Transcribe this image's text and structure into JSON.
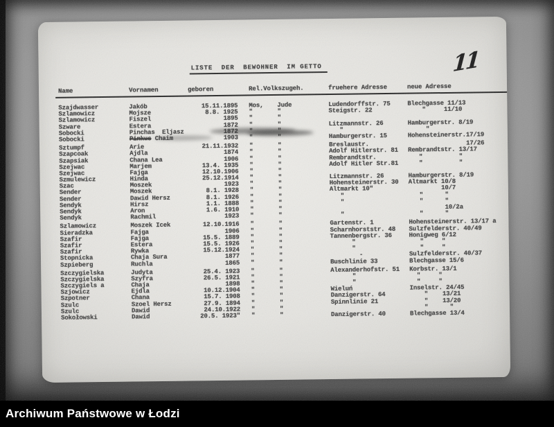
{
  "annotations": {
    "page_number_handwritten": "11"
  },
  "footer": {
    "label": "Archiwum Państwowe w Łodzi"
  },
  "colors": {
    "paper": "#e6e5e1",
    "backing": "#8f8f8f",
    "ink": "#3d3d3d",
    "bar": "#000000",
    "bar_text": "#ffffff"
  },
  "document": {
    "title": "LISTE  DER  BEWOHNER  IM GETTO",
    "headers": {
      "name": "Name",
      "vornamen": "Vornamen",
      "geboren": "geboren",
      "rel": "Rel.Volkszugeh.",
      "addr_old": "fruehere Adresse",
      "addr_new": "neue Adresse"
    },
    "rows": [
      {
        "name": "Szajdwasser",
        "vorname": "Jakób",
        "geboren": "15.11.1895",
        "rel1": "Mos,",
        "rel2": "Jude",
        "addr_old": "Ludendorffstr. 75",
        "addr_new": "Blechgasse 11/13"
      },
      {
        "name": "Szlamowicz",
        "vorname": "Mojsze",
        "geboren": "8.8. 1925",
        "rel1": "\"",
        "rel2": "\"",
        "addr_old": "Steigstr. 22",
        "addr_new": "    \"     11/10"
      },
      {
        "name": "Szlamowicz",
        "vorname": "Fiszel",
        "geboren": "1895",
        "rel1": "\"",
        "rel2": "\"",
        "addr_old": "",
        "addr_new": ""
      },
      {
        "name": "Szware",
        "vorname": "Estera",
        "geboren": "1872",
        "rel1": "\"",
        "rel2": "\"",
        "addr_old": "Litzmannstr. 26",
        "addr_new": "Hamburgerstr. 8/19"
      },
      {
        "name": "Sobocki",
        "vorname": "Pinchas  Eljasz",
        "geboren": "1872",
        "rel1": "\"",
        "rel2": "\"",
        "addr_old": "   \"",
        "addr_new": "     \""
      },
      {
        "name": "Sobocki",
        "vorname": "Chaim",
        "vorname_struck": "Pinkus",
        "geboren": "1903",
        "rel1": "\"",
        "rel2": "\"",
        "addr_old": "Hamburgerstr. 15",
        "addr_new": "Hohensteinerstr.17/19"
      },
      {
        "name": "Sztumpf",
        "vorname": "Arie",
        "geboren": "21.11.1932",
        "rel1": "\"",
        "rel2": "\"",
        "addr_old": "Breslaustr.",
        "addr_new": "                17/26",
        "gap": true
      },
      {
        "name": "Szapcoak",
        "vorname": "Ajdla",
        "geboren": "1874",
        "rel1": "\"",
        "rel2": "\"",
        "addr_old": "Adolf Hitlerstr. 81",
        "addr_new": "Rembrandtstr. 13/17"
      },
      {
        "name": "Szapsiak",
        "vorname": "Chana Lea",
        "geboren": "1906",
        "rel1": "\"",
        "rel2": "\"",
        "addr_old": "Rembrandtstr.",
        "addr_new": "   \"          \""
      },
      {
        "name": "Szejwac",
        "vorname": "Marjem",
        "geboren": "13.4. 1935",
        "rel1": "\"",
        "rel2": "\"",
        "addr_old": "Adolf Hitler Str.81",
        "addr_new": "   \"          \""
      },
      {
        "name": "Szejwac",
        "vorname": "Fajga",
        "geboren": "12.10.1906",
        "rel1": "\"",
        "rel2": "\"",
        "addr_old": "",
        "addr_new": ""
      },
      {
        "name": "Szmulewicz",
        "vorname": "Hinda",
        "geboren": "25.12.1914",
        "rel1": "\"",
        "rel2": "\"",
        "addr_old": "Litzmannstr. 26",
        "addr_new": "Hamburgerstr. 8/19"
      },
      {
        "name": "Szac",
        "vorname": "Moszek",
        "geboren": "1923",
        "rel1": "\"",
        "rel2": "\"",
        "addr_old": "Hohensteinerstr. 30",
        "addr_new": "Altmarkt 10/8"
      },
      {
        "name": "Sender",
        "vorname": "Moszek",
        "geboren": "8.1. 1928",
        "rel1": "\"",
        "rel2": "\"",
        "addr_old": "Altmarkt 10\"",
        "addr_new": "         10/7"
      },
      {
        "name": "Sender",
        "vorname": "Dawid Hersz",
        "geboren": "8.1. 1926",
        "rel1": "\"",
        "rel2": "\"",
        "addr_old": "   \"",
        "addr_new": "   \"      \""
      },
      {
        "name": "Sendyk",
        "vorname": "Hirsz",
        "geboren": "1.1. 1888",
        "rel1": "\"",
        "rel2": "\"",
        "addr_old": "   \"",
        "addr_new": "   \"      \""
      },
      {
        "name": "Sendyk",
        "vorname": "Aron",
        "geboren": "1.6. 1910",
        "rel1": "\"",
        "rel2": "\"",
        "addr_old": "",
        "addr_new": "          10/2a"
      },
      {
        "name": "Sendyk",
        "vorname": "Rachmil",
        "geboren": "1923",
        "rel1": "\"",
        "rel2": "\"",
        "addr_old": "   \"",
        "addr_new": "   \"      \""
      },
      {
        "name": "Szlamowicz",
        "vorname": "Moszek Icek",
        "geboren": "12.10.1916",
        "rel1": "\"",
        "rel2": "\"",
        "addr_old": "Gartenstr. 1",
        "addr_new": "Hohensteinerstr. 13/17 a",
        "gap": true
      },
      {
        "name": "Sieradzka",
        "vorname": "Fajga",
        "geboren": "1906",
        "rel1": "\"",
        "rel2": "\"",
        "addr_old": "Scharnhorststr. 48",
        "addr_new": "Sulzfelderstr. 40/49"
      },
      {
        "name": "Szafir",
        "vorname": "Fajga",
        "geboren": "15.5. 1889",
        "rel1": "\"",
        "rel2": "\"",
        "addr_old": "Tannenbergstr. 36",
        "addr_new": "Honigweg 6/12"
      },
      {
        "name": "Szafir",
        "vorname": "Estera",
        "geboren": "15.5. 1926",
        "rel1": "\"",
        "rel2": "\"",
        "addr_old": "      \"",
        "addr_new": "   \"     \""
      },
      {
        "name": "Szafir",
        "vorname": "Rywka",
        "geboren": "15.12.1924",
        "rel1": "\"",
        "rel2": "\"",
        "addr_old": "      \"",
        "addr_new": "   \"     \""
      },
      {
        "name": "Stopnicka",
        "vorname": "Chaja Sura",
        "geboren": "1877",
        "rel1": "\"",
        "rel2": "\"",
        "addr_old": "        -",
        "addr_new": "Sulzfelderstr. 40/37"
      },
      {
        "name": "Szpieberg",
        "vorname": "Ruchla",
        "geboren": "1865",
        "rel1": "\"",
        "rel2": "\"",
        "addr_old": "Buschlinie 33",
        "addr_new": "Blechgasse 15/6"
      },
      {
        "name": "Szczygielska",
        "vorname": "Judyta",
        "geboren": "25.4. 1923",
        "rel1": "\"",
        "rel2": "\"",
        "addr_old": "Alexanderhofstr. 51",
        "addr_new": "Korbstr. 13/1",
        "gap": true
      },
      {
        "name": "Szczygielska",
        "vorname": "Szyfra",
        "geboren": "26.5. 1921",
        "rel1": "\"",
        "rel2": "\"",
        "addr_old": "      \"",
        "addr_new": "  \"     \""
      },
      {
        "name": "Szczygiels a",
        "vorname": "Chaja",
        "geboren": "1898",
        "rel1": "\"",
        "rel2": "\"",
        "addr_old": "      \"",
        "addr_new": "  \"     \""
      },
      {
        "name": "Szjowicz",
        "vorname": "Ejdla",
        "geboren": "10.12.1904",
        "rel1": "\"",
        "rel2": "\"",
        "addr_old": "Wieluń",
        "addr_new": "Inselstr. 24/45"
      },
      {
        "name": "Szpotner",
        "vorname": "Chana",
        "geboren": "15.7. 1908",
        "rel1": "\"",
        "rel2": "\"",
        "addr_old": "Danzigerstr. 64",
        "addr_new": "    \"    13/21"
      },
      {
        "name": "Szulc",
        "vorname": "Szoel Hersz",
        "geboren": "27.9. 1894",
        "rel1": "\"",
        "rel2": "\"",
        "addr_old": "Spinnlinie 21",
        "addr_new": "    \"    13/20"
      },
      {
        "name": "Szulc",
        "vorname": "Dawid",
        "geboren": "24.10.1922",
        "rel1": "\"",
        "rel2": "\"",
        "addr_old": "",
        "addr_new": "    \"      \""
      },
      {
        "name": "Sokołowski",
        "vorname": "Dawid",
        "geboren": "20.5. 1923\"",
        "rel1": "\"",
        "rel2": "\"",
        "addr_old": "Danzigerstr. 40",
        "addr_new": "Blechgasse 13/4"
      }
    ]
  }
}
